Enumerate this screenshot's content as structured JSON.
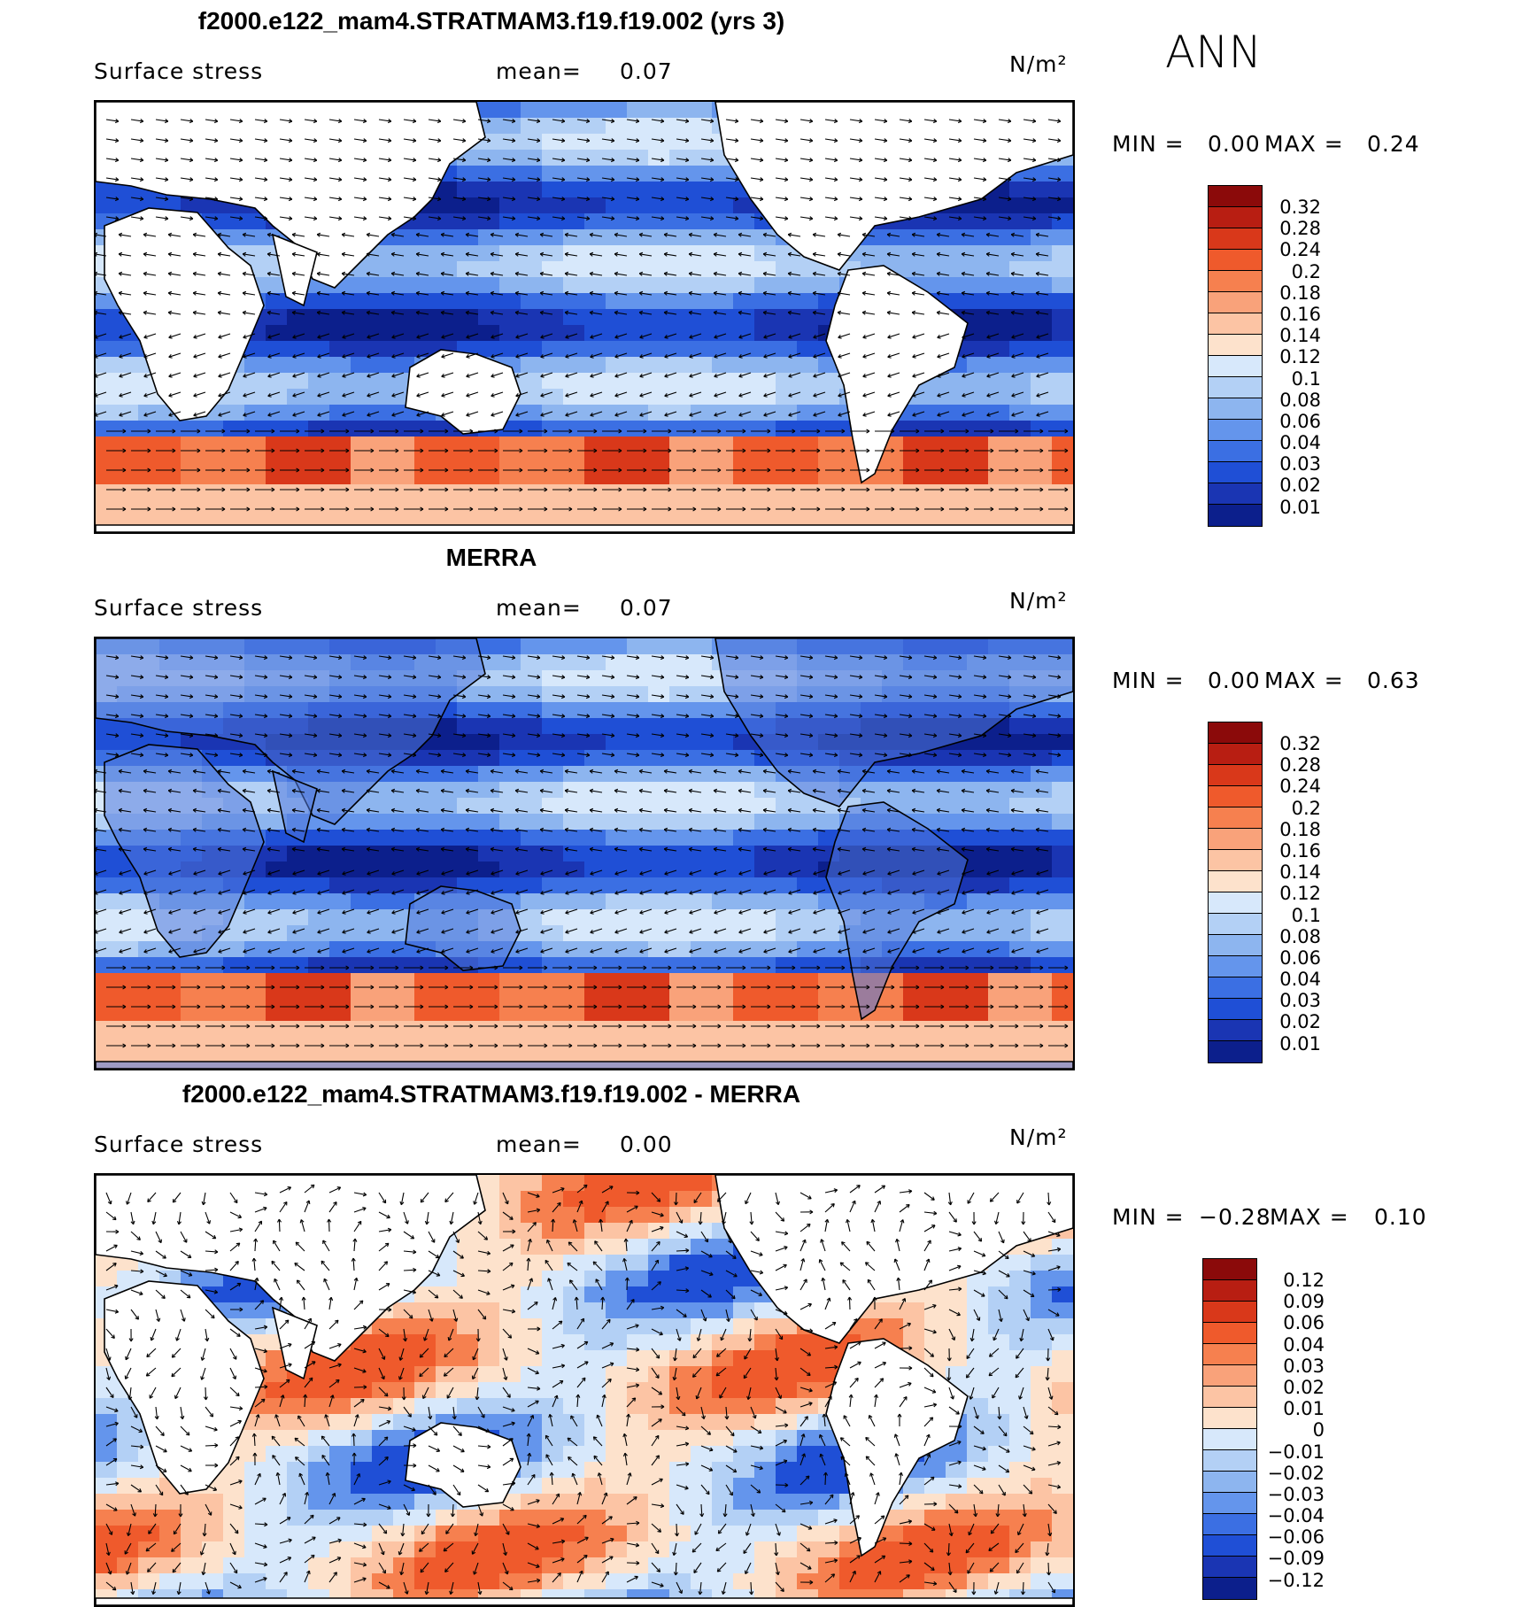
{
  "season": "ANN",
  "panels": [
    {
      "title": "f2000.e122_mam4.STRATMAM3.f19.f19.002 (yrs 3)",
      "variable": "Surface stress",
      "mean_label": "mean=",
      "mean_value": "0.07",
      "units": "N/m²",
      "min_label": "MIN =",
      "min_value": "0.00",
      "max_label": "MAX =",
      "max_value": "0.24",
      "colorbar": {
        "labels": [
          "0.32",
          "0.28",
          "0.24",
          "0.2",
          "0.18",
          "0.16",
          "0.14",
          "0.12",
          "0.1",
          "0.08",
          "0.06",
          "0.04",
          "0.03",
          "0.02",
          "0.01"
        ],
        "colors": [
          "#8b0a0a",
          "#b81e12",
          "#d9381a",
          "#ef5a2c",
          "#f6804f",
          "#f9a27a",
          "#fcc4a4",
          "#fde2cc",
          "#d7e8fb",
          "#b3d0f5",
          "#8db5ef",
          "#6495ec",
          "#3b6fe3",
          "#1f4fd6",
          "#1a35b3",
          "#0c1f8c"
        ]
      },
      "field": "model"
    },
    {
      "title": "MERRA",
      "variable": "Surface stress",
      "mean_label": "mean=",
      "mean_value": "0.07",
      "units": "N/m²",
      "min_label": "MIN =",
      "min_value": "0.00",
      "max_label": "MAX =",
      "max_value": "0.63",
      "colorbar": {
        "labels": [
          "0.32",
          "0.28",
          "0.24",
          "0.2",
          "0.18",
          "0.16",
          "0.14",
          "0.12",
          "0.1",
          "0.08",
          "0.06",
          "0.04",
          "0.03",
          "0.02",
          "0.01"
        ],
        "colors": [
          "#8b0a0a",
          "#b81e12",
          "#d9381a",
          "#ef5a2c",
          "#f6804f",
          "#f9a27a",
          "#fcc4a4",
          "#fde2cc",
          "#d7e8fb",
          "#b3d0f5",
          "#8db5ef",
          "#6495ec",
          "#3b6fe3",
          "#1f4fd6",
          "#1a35b3",
          "#0c1f8c"
        ]
      },
      "field": "obs"
    },
    {
      "title": "f2000.e122_mam4.STRATMAM3.f19.f19.002 - MERRA",
      "variable": "Surface stress",
      "mean_label": "mean=",
      "mean_value": "0.00",
      "units": "N/m²",
      "min_label": "MIN =",
      "min_value": "−0.28",
      "max_label": "MAX =",
      "max_value": "0.10",
      "colorbar": {
        "labels": [
          "0.12",
          "0.09",
          "0.06",
          "0.04",
          "0.03",
          "0.02",
          "0.01",
          "0",
          "−0.01",
          "−0.02",
          "−0.03",
          "−0.04",
          "−0.06",
          "−0.09",
          "−0.12"
        ],
        "colors": [
          "#8b0a0a",
          "#b81e12",
          "#d9381a",
          "#ef5a2c",
          "#f6804f",
          "#f9a27a",
          "#fcc4a4",
          "#fde2cc",
          "#d7e8fb",
          "#b3d0f5",
          "#8db5ef",
          "#6495ec",
          "#3b6fe3",
          "#1f4fd6",
          "#1a35b3",
          "#0c1f8c"
        ]
      },
      "field": "diff"
    }
  ]
}
